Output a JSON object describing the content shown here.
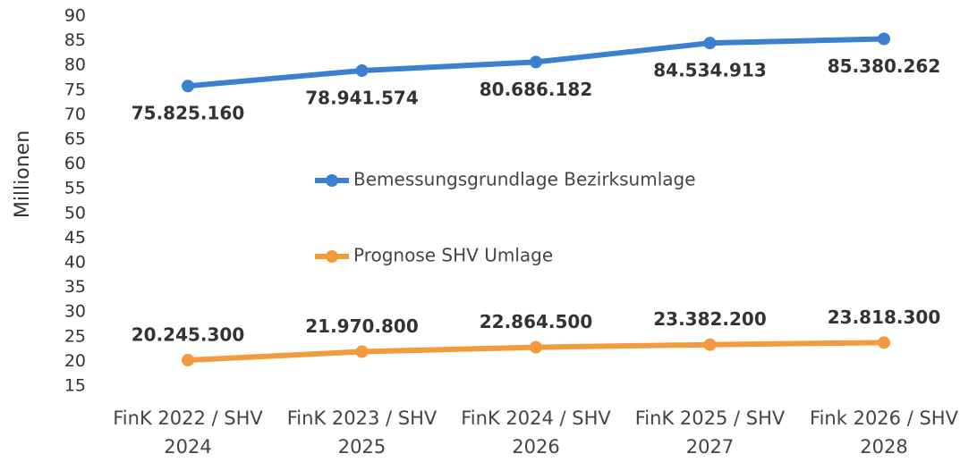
{
  "chart_data": {
    "type": "line",
    "y_axis_label": "Millionen",
    "categories": [
      "FinK 2022 / SHV 2024",
      "FinK 2023 / SHV 2025",
      "FinK 2024 / SHV 2026",
      "FinK 2025 / SHV 2027",
      "Fink 2026 / SHV 2028"
    ],
    "series": [
      {
        "name": "Bemessungsgrundlage Bezirksumlage",
        "color": "#3a7fd0",
        "label_position": "below",
        "values": [
          75.82516,
          78.941574,
          80.686182,
          84.534913,
          85.380262
        ],
        "value_labels": [
          "75.825.160",
          "78.941.574",
          "80.686.182",
          "84.534.913",
          "85.380.262"
        ]
      },
      {
        "name": "Prognose SHV Umlage",
        "color": "#f39a3c",
        "label_position": "above",
        "values": [
          20.2453,
          21.9708,
          22.8645,
          23.3822,
          23.8183
        ],
        "value_labels": [
          "20.245.300",
          "21.970.800",
          "22.864.500",
          "23.382.200",
          "23.818.300"
        ]
      }
    ],
    "ylim": [
      15,
      90
    ],
    "yticks": [
      15,
      20,
      25,
      30,
      35,
      40,
      45,
      50,
      55,
      60,
      65,
      70,
      75,
      80,
      85,
      90
    ],
    "grid": false
  }
}
